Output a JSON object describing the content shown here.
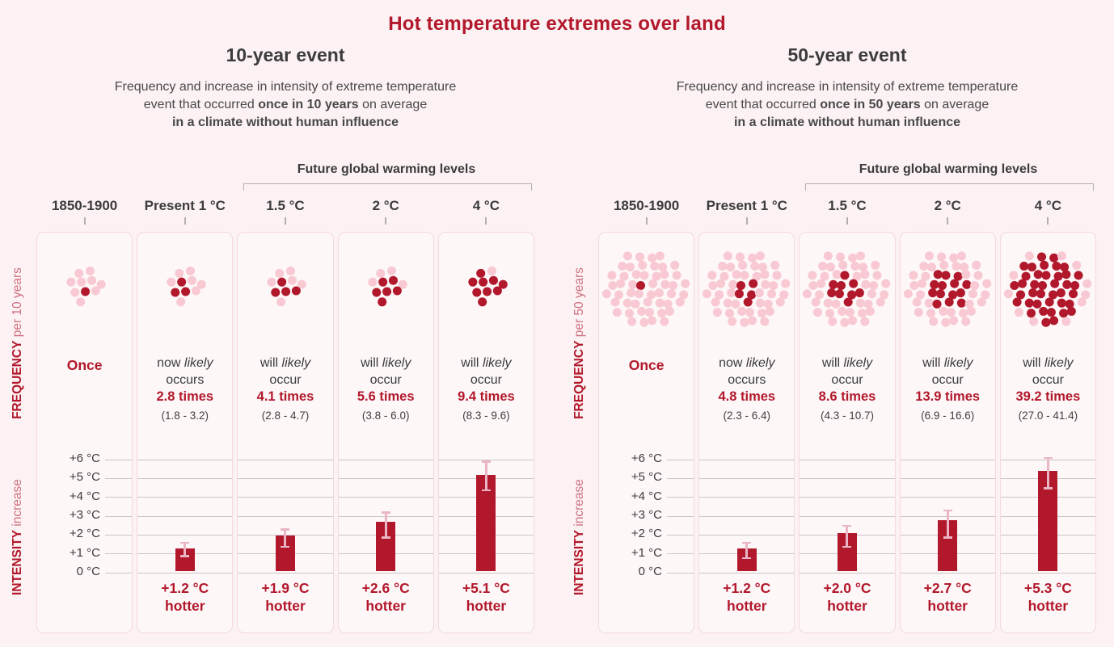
{
  "page": {
    "title": "Hot temperature extremes over land"
  },
  "colors": {
    "accent": "#b2182b",
    "dot_pink": "#f8c9d3",
    "error_bar": "#eab5c4",
    "gridline": "#ccc5c8",
    "text_dark": "#3b3b3d",
    "card_bg": "#fdf7f8",
    "card_border": "#f3d9de",
    "page_bg": "#fcf1f3",
    "axis_light_red": "#cd7180",
    "bracket_gray": "#b5aeb1"
  },
  "panels": [
    {
      "title": "10-year event",
      "subtitle_line1": "Frequency and increase in intensity of extreme temperature",
      "subtitle_line2_pre": "event that occurred ",
      "subtitle_line2_bold": "once in 10 years",
      "subtitle_line2_post": " on average",
      "subtitle_line3": "in a climate without human influence",
      "bracket_label": "Future global warming levels",
      "freq_axis_bold": "FREQUENCY",
      "freq_axis_light": " per 10 years",
      "intensity_axis_bold": "INTENSITY",
      "intensity_axis_light": " increase",
      "yticks": [
        "+6 °C",
        "+5 °C",
        "+4 °C",
        "+3 °C",
        "+2 °C",
        "+1 °C",
        "0 °C"
      ],
      "columns": [
        {
          "header": "1850-1900",
          "dots": {
            "total": 10,
            "filled": 1
          },
          "freq_once": "Once"
        },
        {
          "header": "Present 1 °C",
          "dots": {
            "total": 10,
            "filled": 3
          },
          "freq": {
            "pre": "now ",
            "likely": "likely",
            "line2": "occurs",
            "times": "2.8 times",
            "range": "(1.8 - 3.2)"
          },
          "bar": {
            "value": 1.2,
            "lo": 0.8,
            "hi": 1.5,
            "label_value": "+1.2 °C",
            "label_word": "hotter"
          }
        },
        {
          "header": "1.5 °C",
          "dots": {
            "total": 10,
            "filled": 4
          },
          "freq": {
            "pre": "will ",
            "likely": "likely",
            "line2": "occur",
            "times": "4.1 times",
            "range": "(2.8 - 4.7)"
          },
          "bar": {
            "value": 1.9,
            "lo": 1.3,
            "hi": 2.2,
            "label_value": "+1.9 °C",
            "label_word": "hotter"
          }
        },
        {
          "header": "2 °C",
          "dots": {
            "total": 10,
            "filled": 6
          },
          "freq": {
            "pre": "will ",
            "likely": "likely",
            "line2": "occur",
            "times": "5.6 times",
            "range": "(3.8 - 6.0)"
          },
          "bar": {
            "value": 2.6,
            "lo": 1.8,
            "hi": 3.1,
            "label_value": "+2.6 °C",
            "label_word": "hotter"
          }
        },
        {
          "header": "4 °C",
          "dots": {
            "total": 10,
            "filled": 9
          },
          "freq": {
            "pre": "will ",
            "likely": "likely",
            "line2": "occur",
            "times": "9.4 times",
            "range": "(8.3 - 9.6)"
          },
          "bar": {
            "value": 5.1,
            "lo": 4.3,
            "hi": 5.8,
            "label_value": "+5.1 °C",
            "label_word": "hotter"
          }
        }
      ]
    },
    {
      "title": "50-year event",
      "subtitle_line1": "Frequency and increase in intensity of extreme temperature",
      "subtitle_line2_pre": "event that occurred ",
      "subtitle_line2_bold": "once in 50 years",
      "subtitle_line2_post": " on average",
      "subtitle_line3": "in a climate without human influence",
      "bracket_label": "Future global warming levels",
      "freq_axis_bold": "FREQUENCY",
      "freq_axis_light": " per 50 years",
      "intensity_axis_bold": "INTENSITY",
      "intensity_axis_light": " increase",
      "yticks": [
        "+6 °C",
        "+5 °C",
        "+4 °C",
        "+3 °C",
        "+2 °C",
        "+1 °C",
        "0 °C"
      ],
      "columns": [
        {
          "header": "1850-1900",
          "dots": {
            "total": 50,
            "filled": 1
          },
          "freq_once": "Once"
        },
        {
          "header": "Present 1 °C",
          "dots": {
            "total": 50,
            "filled": 5
          },
          "freq": {
            "pre": "now ",
            "likely": "likely",
            "line2": "occurs",
            "times": "4.8 times",
            "range": "(2.3 - 6.4)"
          },
          "bar": {
            "value": 1.2,
            "lo": 0.7,
            "hi": 1.5,
            "label_value": "+1.2 °C",
            "label_word": "hotter"
          }
        },
        {
          "header": "1.5 °C",
          "dots": {
            "total": 50,
            "filled": 9
          },
          "freq": {
            "pre": "will ",
            "likely": "likely",
            "line2": "occur",
            "times": "8.6 times",
            "range": "(4.3 - 10.7)"
          },
          "bar": {
            "value": 2.0,
            "lo": 1.3,
            "hi": 2.4,
            "label_value": "+2.0 °C",
            "label_word": "hotter"
          }
        },
        {
          "header": "2 °C",
          "dots": {
            "total": 50,
            "filled": 14
          },
          "freq": {
            "pre": "will ",
            "likely": "likely",
            "line2": "occur",
            "times": "13.9 times",
            "range": "(6.9 - 16.6)"
          },
          "bar": {
            "value": 2.7,
            "lo": 1.8,
            "hi": 3.2,
            "label_value": "+2.7 °C",
            "label_word": "hotter"
          }
        },
        {
          "header": "4 °C",
          "dots": {
            "total": 50,
            "filled": 39
          },
          "freq": {
            "pre": "will ",
            "likely": "likely",
            "line2": "occur",
            "times": "39.2 times",
            "range": "(27.0 - 41.4)"
          },
          "bar": {
            "value": 5.3,
            "lo": 4.4,
            "hi": 6.0,
            "label_value": "+5.3 °C",
            "label_word": "hotter"
          }
        }
      ]
    }
  ],
  "chart_data": [
    {
      "type": "bar",
      "title": "10-year event",
      "subtitle": "Frequency and increase in intensity of extreme temperature event that occurred once in 10 years on average in a climate without human influence",
      "categories": [
        "1850-1900",
        "Present 1 °C",
        "1.5 °C",
        "2 °C",
        "4 °C"
      ],
      "series": [
        {
          "name": "Frequency (times per 10 years)",
          "values": [
            1,
            2.8,
            4.1,
            5.6,
            9.4
          ]
        },
        {
          "name": "Frequency likely range",
          "values": [
            null,
            [
              1.8,
              3.2
            ],
            [
              2.8,
              4.7
            ],
            [
              3.8,
              6.0
            ],
            [
              8.3,
              9.6
            ]
          ]
        },
        {
          "name": "Intensity increase (°C)",
          "values": [
            null,
            1.2,
            1.9,
            2.6,
            5.1
          ]
        },
        {
          "name": "Intensity whisker range (°C, estimated from plot)",
          "values": [
            null,
            [
              0.8,
              1.5
            ],
            [
              1.3,
              2.2
            ],
            [
              1.8,
              3.1
            ],
            [
              4.3,
              5.8
            ]
          ]
        }
      ],
      "xlabel": "Future global warming levels (for 1.5 °C, 2 °C, 4 °C)",
      "ylabel": "INTENSITY increase",
      "ylabel2": "FREQUENCY per 10 years",
      "ylim": [
        0,
        6
      ],
      "grid": true,
      "legend_position": "none"
    },
    {
      "type": "bar",
      "title": "50-year event",
      "subtitle": "Frequency and increase in intensity of extreme temperature event that occurred once in 50 years on average in a climate without human influence",
      "categories": [
        "1850-1900",
        "Present 1 °C",
        "1.5 °C",
        "2 °C",
        "4 °C"
      ],
      "series": [
        {
          "name": "Frequency (times per 50 years)",
          "values": [
            1,
            4.8,
            8.6,
            13.9,
            39.2
          ]
        },
        {
          "name": "Frequency likely range",
          "values": [
            null,
            [
              2.3,
              6.4
            ],
            [
              4.3,
              10.7
            ],
            [
              6.9,
              16.6
            ],
            [
              27.0,
              41.4
            ]
          ]
        },
        {
          "name": "Intensity increase (°C)",
          "values": [
            null,
            1.2,
            2.0,
            2.7,
            5.3
          ]
        },
        {
          "name": "Intensity whisker range (°C, estimated from plot)",
          "values": [
            null,
            [
              0.7,
              1.5
            ],
            [
              1.3,
              2.4
            ],
            [
              1.8,
              3.2
            ],
            [
              4.4,
              6.0
            ]
          ]
        }
      ],
      "xlabel": "Future global warming levels (for 1.5 °C, 2 °C, 4 °C)",
      "ylabel": "INTENSITY increase",
      "ylabel2": "FREQUENCY per 50 years",
      "ylim": [
        0,
        6
      ],
      "grid": true,
      "legend_position": "none"
    }
  ]
}
